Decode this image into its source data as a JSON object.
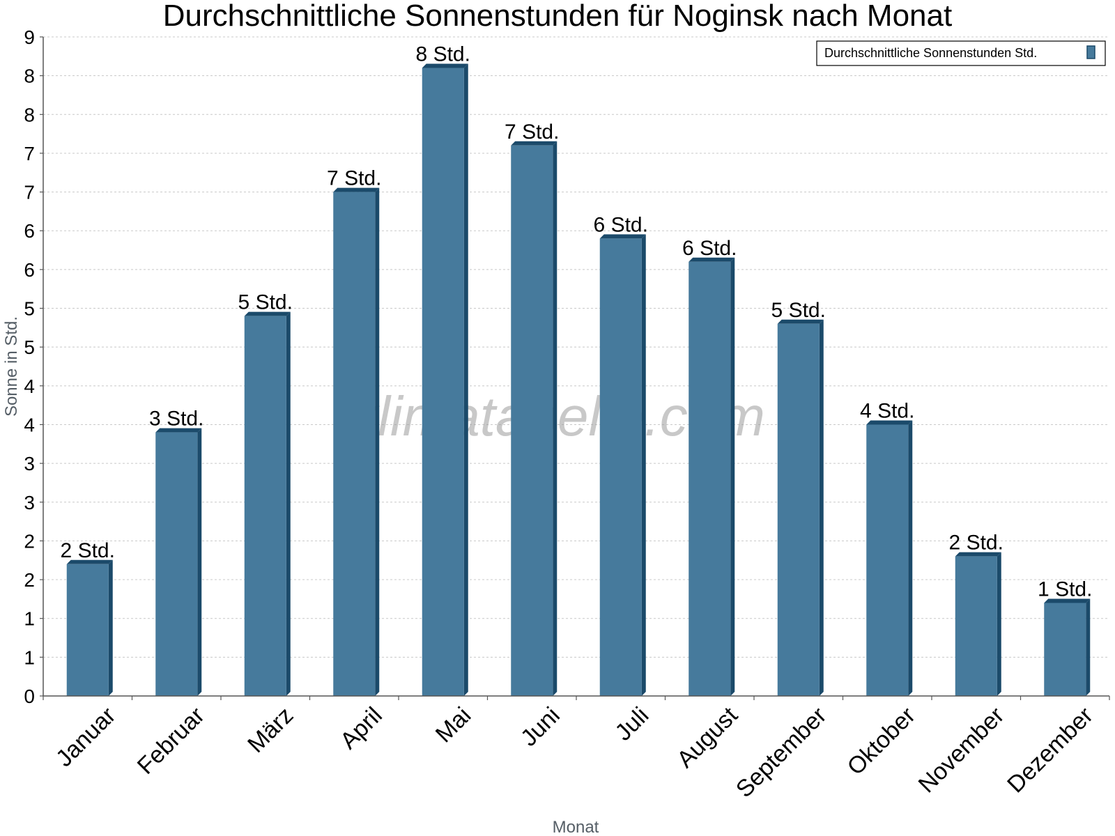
{
  "chart_data": {
    "type": "bar",
    "title": "Durchschnittliche Sonnenstunden für Noginsk nach Monat",
    "xlabel": "Monat",
    "ylabel": "Sonne in Std.",
    "ylim": [
      0,
      8.5
    ],
    "y_tick_labels": [
      "0",
      "1",
      "1",
      "2",
      "2",
      "3",
      "3",
      "4",
      "4",
      "5",
      "5",
      "6",
      "6",
      "7",
      "7",
      "8",
      "8",
      "9"
    ],
    "categories": [
      "Januar",
      "Februar",
      "März",
      "April",
      "Mai",
      "Juni",
      "Juli",
      "August",
      "September",
      "Oktober",
      "November",
      "Dezember"
    ],
    "series": [
      {
        "name": "Durchschnittliche Sonnenstunden Std.",
        "values": [
          1.7,
          3.4,
          4.9,
          6.5,
          8.1,
          7.1,
          5.9,
          5.6,
          4.8,
          3.5,
          1.8,
          1.2
        ],
        "data_labels": [
          "2 Std.",
          "3 Std.",
          "5 Std.",
          "7 Std.",
          "8 Std.",
          "7 Std.",
          "6 Std.",
          "6 Std.",
          "5 Std.",
          "4 Std.",
          "2 Std.",
          "1 Std."
        ],
        "color": "#467a9c",
        "side_color": "#1b4a6a"
      }
    ],
    "grid": true,
    "legend_position": "top-right",
    "watermark": "klimatabelle.com"
  }
}
